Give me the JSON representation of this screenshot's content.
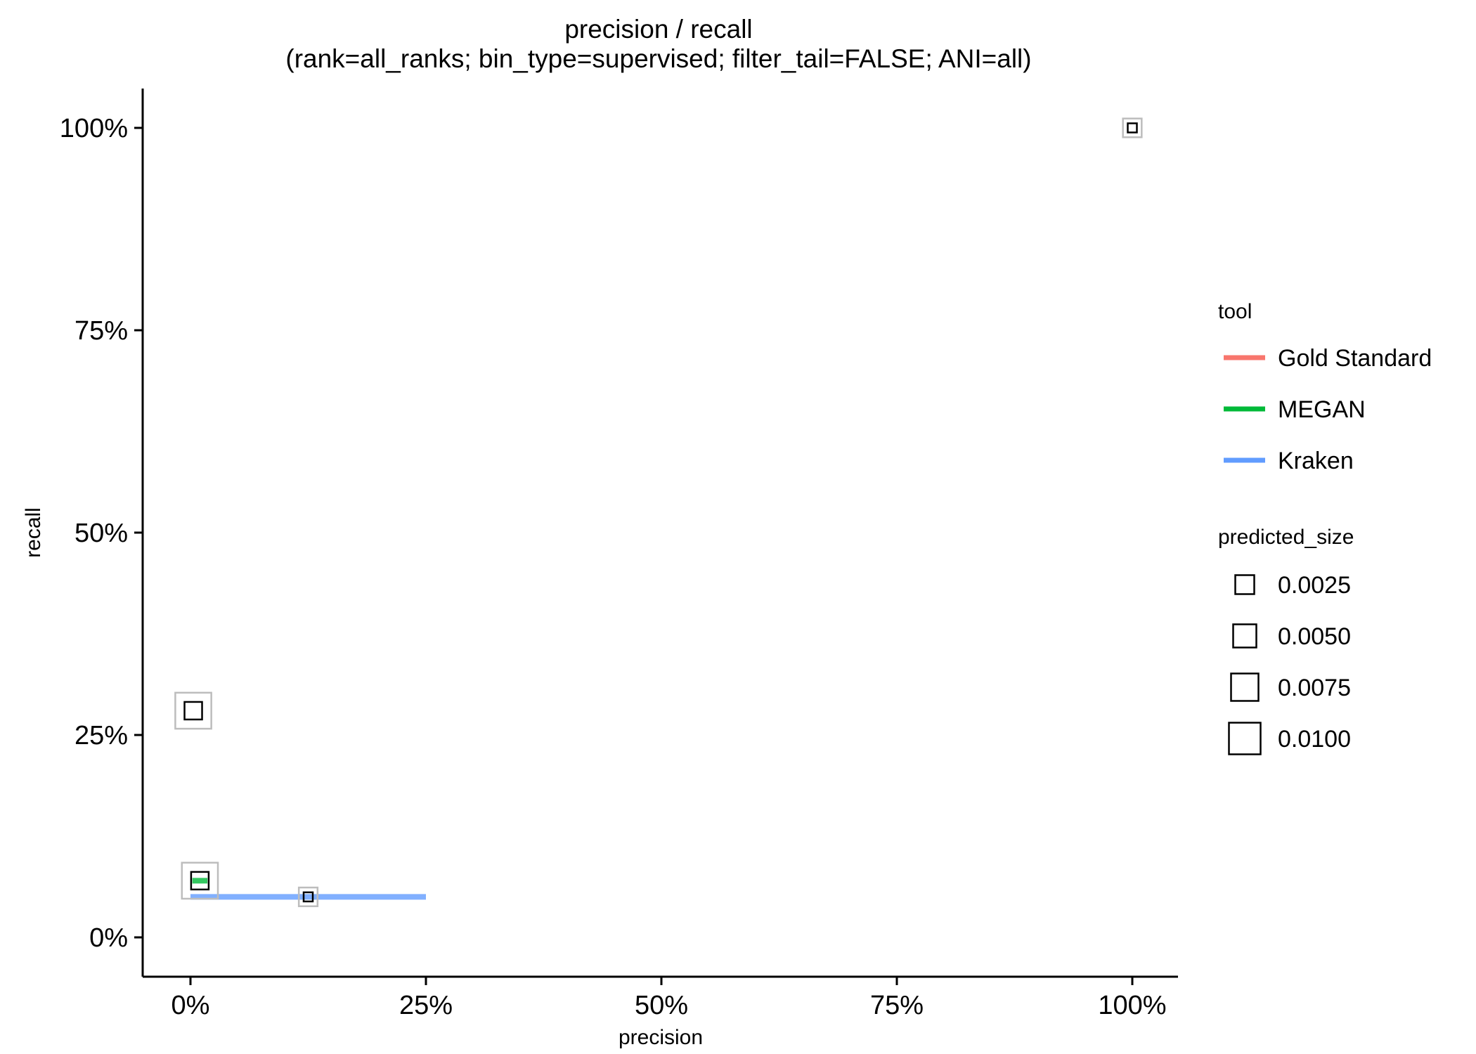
{
  "chart_data": {
    "type": "scatter",
    "title": "precision / recall",
    "subtitle": "(rank=all_ranks; bin_type=supervised; filter_tail=FALSE; ANI=all)",
    "xlabel": "precision",
    "ylabel": "recall",
    "xlim": [
      -5,
      105
    ],
    "ylim": [
      -5,
      105
    ],
    "x_ticks": [
      0,
      25,
      50,
      75,
      100
    ],
    "y_ticks": [
      0,
      25,
      50,
      75,
      100
    ],
    "x_tick_labels": [
      "0%",
      "25%",
      "50%",
      "75%",
      "100%"
    ],
    "y_tick_labels": [
      "0%",
      "25%",
      "50%",
      "75%",
      "100%"
    ],
    "grid": false,
    "legend_position": "right",
    "series": [
      {
        "name": "Gold Standard",
        "color": "#F8766D",
        "points": [
          {
            "x": 100,
            "y": 100,
            "predicted_size": 0.0025
          }
        ],
        "range": {
          "x_min": 100,
          "x_max": 100,
          "y": 100
        }
      },
      {
        "name": "MEGAN",
        "color": "#00BA38",
        "points": [
          {
            "x": 1,
            "y": 7,
            "predicted_size": 0.0075
          }
        ],
        "range": {
          "x_min": 0.2,
          "x_max": 1.8,
          "y": 7
        }
      },
      {
        "name": "Kraken",
        "color": "#619CFF",
        "points": [
          {
            "x": 12.5,
            "y": 5,
            "predicted_size": 0.0025
          },
          {
            "x": 0.3,
            "y": 28,
            "predicted_size": 0.0075
          }
        ],
        "range": {
          "x_min": 0,
          "x_max": 25,
          "y": 5
        }
      }
    ],
    "legend": {
      "color_title": "tool",
      "color_items": [
        "Gold Standard",
        "MEGAN",
        "Kraken"
      ],
      "size_title": "predicted_size",
      "size_items": [
        0.0025,
        0.005,
        0.0075,
        0.01
      ],
      "size_labels": [
        "0.0025",
        "0.0050",
        "0.0075",
        "0.0100"
      ]
    }
  }
}
